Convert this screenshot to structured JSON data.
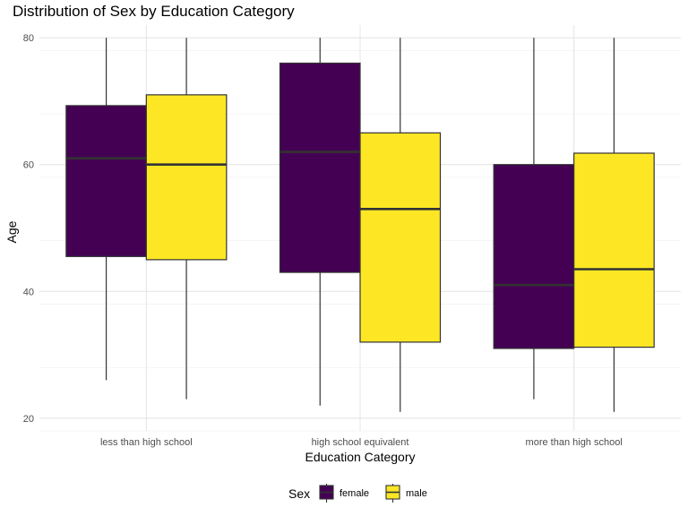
{
  "chart_data": {
    "type": "boxplot",
    "title": "Distribution of Sex by Education Category",
    "xlabel": "Education Category",
    "ylabel": "Age",
    "categories": [
      "less than high school",
      "high school equivalent",
      "more than high school"
    ],
    "ylim": [
      18,
      82
    ],
    "yticks": [
      20,
      40,
      60,
      80
    ],
    "grid": true,
    "legend": {
      "title": "Sex",
      "position": "bottom",
      "entries": [
        {
          "name": "female",
          "color": "#440154"
        },
        {
          "name": "male",
          "color": "#FDE725"
        }
      ]
    },
    "series": [
      {
        "name": "female",
        "color": "#440154",
        "boxes": [
          {
            "min": 26,
            "q1": 45.5,
            "median": 61,
            "q3": 69.3,
            "max": 80
          },
          {
            "min": 22,
            "q1": 43,
            "median": 62,
            "q3": 76,
            "max": 80
          },
          {
            "min": 23,
            "q1": 31,
            "median": 41,
            "q3": 60,
            "max": 80
          }
        ]
      },
      {
        "name": "male",
        "color": "#FDE725",
        "boxes": [
          {
            "min": 23,
            "q1": 45,
            "median": 60,
            "q3": 71,
            "max": 80
          },
          {
            "min": 21,
            "q1": 32,
            "median": 53,
            "q3": 65,
            "max": 80
          },
          {
            "min": 21,
            "q1": 31.2,
            "median": 43.5,
            "q3": 61.8,
            "max": 80
          }
        ]
      }
    ]
  }
}
